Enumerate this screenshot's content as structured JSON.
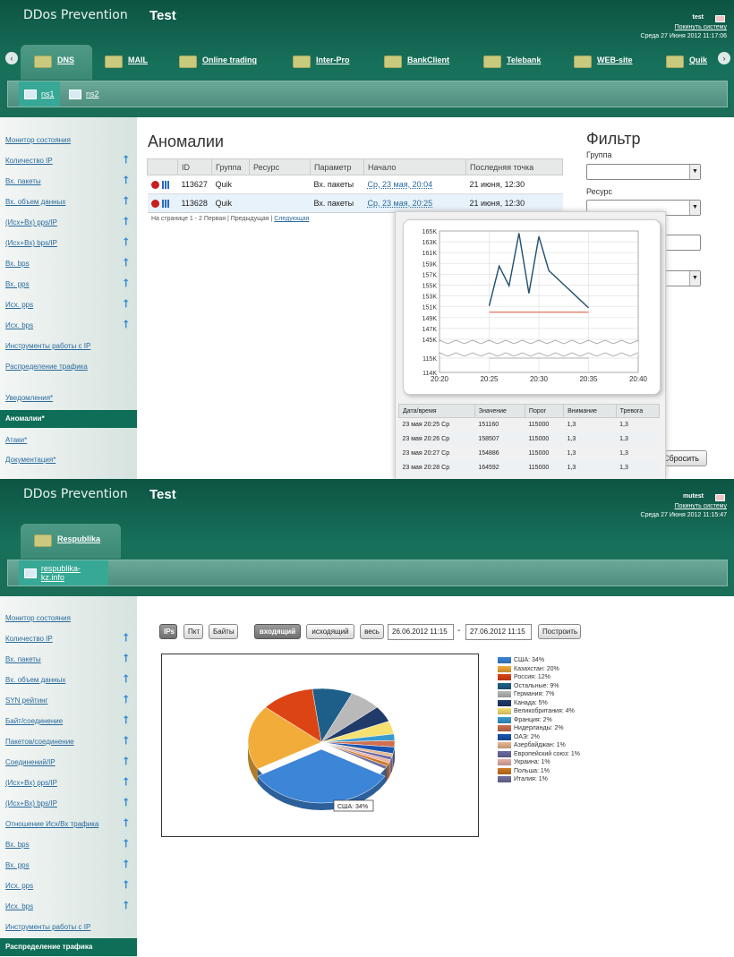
{
  "colors": {
    "header": "#17705a",
    "active_menu": "#0f6e57",
    "link": "#2a6b9c",
    "arrow": "#3a8fd2"
  },
  "shot1": {
    "brand": "DDos Prevention",
    "title": "Test",
    "user": "test",
    "logout": "Покинуть систему",
    "date": "Среда 27 Июня 2012 11:17:06",
    "tabs": [
      "DNS",
      "MAIL",
      "Online trading",
      "Inter-Pro",
      "BankClient",
      "Telebank",
      "WEB-site",
      "Quik"
    ],
    "subtabs": [
      "ns1",
      "ns2"
    ],
    "sidebar": [
      {
        "label": "Монитор состояния",
        "arrow": false
      },
      {
        "label": "Количество IP",
        "arrow": true
      },
      {
        "label": "Вх. пакеты",
        "arrow": true
      },
      {
        "label": "Вх. объем данных",
        "arrow": true
      },
      {
        "label": "(Исх+Вх) pps/IP",
        "arrow": true
      },
      {
        "label": "(Исх+Вх) bps/IP",
        "arrow": true
      },
      {
        "label": "Вх. bps",
        "arrow": true
      },
      {
        "label": "Вх. pps",
        "arrow": true
      },
      {
        "label": "Исх. pps",
        "arrow": true
      },
      {
        "label": "Исх. bps",
        "arrow": true
      },
      {
        "label": "Инструменты работы с IP",
        "arrow": false
      },
      {
        "label": "Распределение трафика",
        "arrow": false
      }
    ],
    "sidebar_lower": [
      "Уведомления*",
      "Аномалии*",
      "Атаки*",
      "Документация*"
    ],
    "heading": "Аномалии",
    "table_headers": [
      "ID",
      "Группа",
      "Ресурс",
      "Параметр",
      "Начало",
      "Последняя точка"
    ],
    "rows": [
      {
        "id": "113627",
        "group": "Quik",
        "resource": "",
        "param": "Вх. пакеты",
        "start": "Ср, 23 мая, 20:04",
        "last": "21 июня, 12:30"
      },
      {
        "id": "113628",
        "group": "Quik",
        "resource": "",
        "param": "Вх. пакеты",
        "start": "Ср, 23 мая, 20:25",
        "last": "21 июня, 12:30"
      }
    ],
    "pager": {
      "text": "На странице 1 - 2   Первая | Предыдущая |",
      "next": "Следующая"
    },
    "filter": {
      "title": "Фильтр",
      "group_label": "Группа",
      "resource_label": "Ресурс",
      "reset": "Сбросить"
    },
    "popup_table": {
      "headers": [
        "Дата/время",
        "Значение",
        "Порог",
        "Внимание",
        "Тревога"
      ],
      "rows": [
        [
          "23 мая 20:25 Ср",
          "151160",
          "115000",
          "1,3",
          "1,3"
        ],
        [
          "23 мая 20:26 Ср",
          "158507",
          "115000",
          "1,3",
          "1,3"
        ],
        [
          "23 мая 20:27 Ср",
          "154886",
          "115000",
          "1,3",
          "1,3"
        ],
        [
          "23 мая 20:28 Ср",
          "164592",
          "115000",
          "1,3",
          "1,3"
        ]
      ]
    }
  },
  "chart_data": [
    {
      "type": "line",
      "x": [
        "20:20",
        "20:25",
        "20:30",
        "20:35",
        "20:40"
      ],
      "yticks": [
        "114K",
        "115K",
        "145K",
        "147K",
        "149K",
        "151K",
        "153K",
        "155K",
        "157K",
        "159K",
        "161K",
        "163K",
        "165K"
      ],
      "series": [
        {
          "values": [
            [
              20.25,
              151160
            ],
            [
              20.26,
              158507
            ],
            [
              20.27,
              154886
            ],
            [
              20.28,
              164592
            ],
            [
              20.29,
              153500
            ],
            [
              20.3,
              164000
            ],
            [
              20.31,
              157700
            ],
            [
              20.35,
              150800
            ]
          ]
        },
        {
          "values": [
            [
              20.25,
              150000
            ],
            [
              20.35,
              150000
            ]
          ]
        },
        {
          "values": [
            [
              20.25,
              115000
            ],
            [
              20.35,
              115000
            ]
          ]
        }
      ],
      "colors": [
        "#1f4f6e",
        "#e05030",
        "#b0b0b0"
      ]
    },
    {
      "type": "pie",
      "series_labels": [
        "США: 34%",
        "Казахстан: 20%",
        "Россия: 12%",
        "Остальные: 9%",
        "Германия: 7%",
        "Канада: 5%",
        "Великобритания: 4%",
        "Франция: 2%",
        "Нидерланды: 2%",
        "ОАЭ: 2%",
        "Азербайджан: 1%",
        "Европейский союз: 1%",
        "Украина: 1%",
        "Польша: 1%",
        "Италия: 1%"
      ],
      "values": [
        34,
        20,
        12,
        9,
        7,
        5,
        4,
        2,
        2,
        2,
        1,
        1,
        1,
        1,
        1
      ],
      "colors": [
        "#3d85d6",
        "#f2ac3a",
        "#dc4414",
        "#1e5f8a",
        "#b9b9b9",
        "#203a6a",
        "#f6e070",
        "#3a9ad0",
        "#d07050",
        "#1a56b0",
        "#e8b890",
        "#6a6aa0",
        "#e8b0a8",
        "#d07820",
        "#7070a0"
      ],
      "callout": "США: 34%"
    }
  ],
  "shot2": {
    "brand": "DDos Prevention",
    "title": "Test",
    "user": "mutest",
    "logout": "Покинуть систему",
    "date": "Среда 27 Июня 2012 11:15:47",
    "tab": "Respublika",
    "subtab": "respublika-kz.info",
    "sidebar": [
      {
        "label": "Монитор состояния",
        "arrow": false
      },
      {
        "label": "Количество IP",
        "arrow": true
      },
      {
        "label": "Вх. пакеты",
        "arrow": true
      },
      {
        "label": "Вх. объем данных",
        "arrow": true
      },
      {
        "label": "SYN рейтинг",
        "arrow": true
      },
      {
        "label": "Байт/соединение",
        "arrow": true
      },
      {
        "label": "Пакетов/соединение",
        "arrow": true
      },
      {
        "label": "Соединений/IP",
        "arrow": true
      },
      {
        "label": "(Исх+Вх) pps/IP",
        "arrow": true
      },
      {
        "label": "(Исх+Вх) bps/IP",
        "arrow": true
      },
      {
        "label": "Отношение Исх/Вх трафика",
        "arrow": true
      },
      {
        "label": "Вх. bps",
        "arrow": true
      },
      {
        "label": "Вх. pps",
        "arrow": true
      },
      {
        "label": "Исх. pps",
        "arrow": true
      },
      {
        "label": "Исх. bps",
        "arrow": true
      },
      {
        "label": "Инструменты работы с IP",
        "arrow": false
      }
    ],
    "sidebar_active": "Распределение трафика",
    "buttons": {
      "ips": "IPs",
      "pkt": "Пкт",
      "bytes": "Байты",
      "in": "входящий",
      "out": "исходящий",
      "all": "весь",
      "build": "Построить"
    },
    "date_from": "26.06.2012 11:15",
    "date_sep": "-",
    "date_to": "27.06.2012 11:15"
  }
}
